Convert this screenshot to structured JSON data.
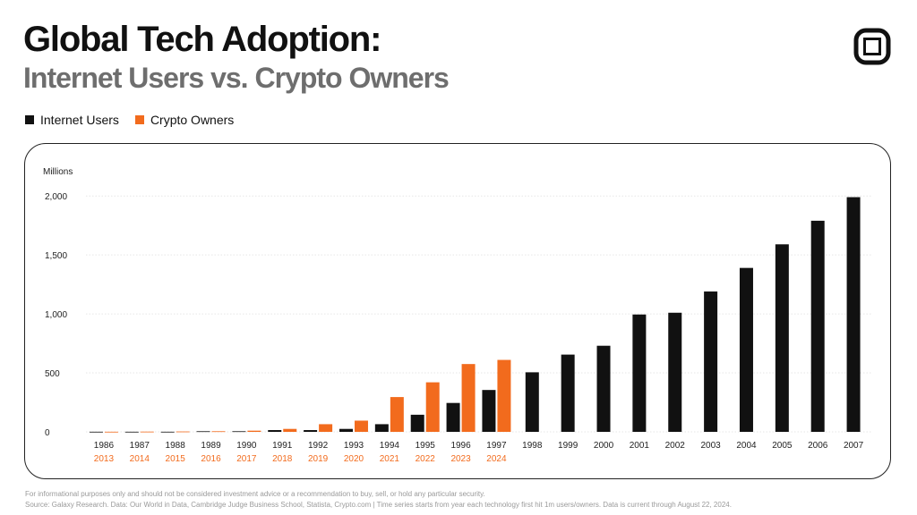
{
  "header": {
    "title": "Global Tech Adoption:",
    "subtitle": "Internet Users vs. Crypto Owners",
    "logo_icon": "square-frame-logo-icon"
  },
  "colors": {
    "internet": "#111111",
    "crypto": "#f26b1d",
    "grid": "#e6e6e6",
    "tick_text": "#222222"
  },
  "chart_data": {
    "type": "bar",
    "ylabel": "Millions",
    "ylim": [
      0,
      2100
    ],
    "yticks": [
      0,
      500,
      1000,
      1500,
      2000
    ],
    "ytick_labels": [
      "0",
      "500",
      "1,000",
      "1,500",
      "2,000"
    ],
    "grid": true,
    "legend_position": "top-left",
    "categories": [
      "1986",
      "1987",
      "1988",
      "1989",
      "1990",
      "1991",
      "1992",
      "1993",
      "1994",
      "1995",
      "1996",
      "1997",
      "1998",
      "1999",
      "2000",
      "2001",
      "2002",
      "2003",
      "2004",
      "2005",
      "2006",
      "2007"
    ],
    "secondary_categories": [
      "2013",
      "2014",
      "2015",
      "2016",
      "2017",
      "2018",
      "2019",
      "2020",
      "2021",
      "2022",
      "2023",
      "2024"
    ],
    "series": [
      {
        "name": "Internet Users",
        "values": [
          1,
          1,
          1,
          5,
          5,
          15,
          15,
          25,
          65,
          145,
          245,
          355,
          505,
          655,
          730,
          995,
          1010,
          1190,
          1390,
          1590,
          1790,
          1990
        ]
      },
      {
        "name": "Crypto Owners",
        "values": [
          1,
          2,
          3,
          5,
          10,
          25,
          65,
          95,
          295,
          420,
          575,
          610,
          null,
          null,
          null,
          null,
          null,
          null,
          null,
          null,
          null,
          null
        ]
      }
    ]
  },
  "footer": {
    "line1": "For informational purposes only and should not be considered investment advice or a recommendation to buy, sell, or hold any particular security.",
    "line2": "Source: Galaxy Research. Data: Our World in Data, Cambridge Judge Business School, Statista, Crypto.com  |  Time series starts from year each technology first hit 1m users/owners. Data is current through August 22, 2024."
  }
}
